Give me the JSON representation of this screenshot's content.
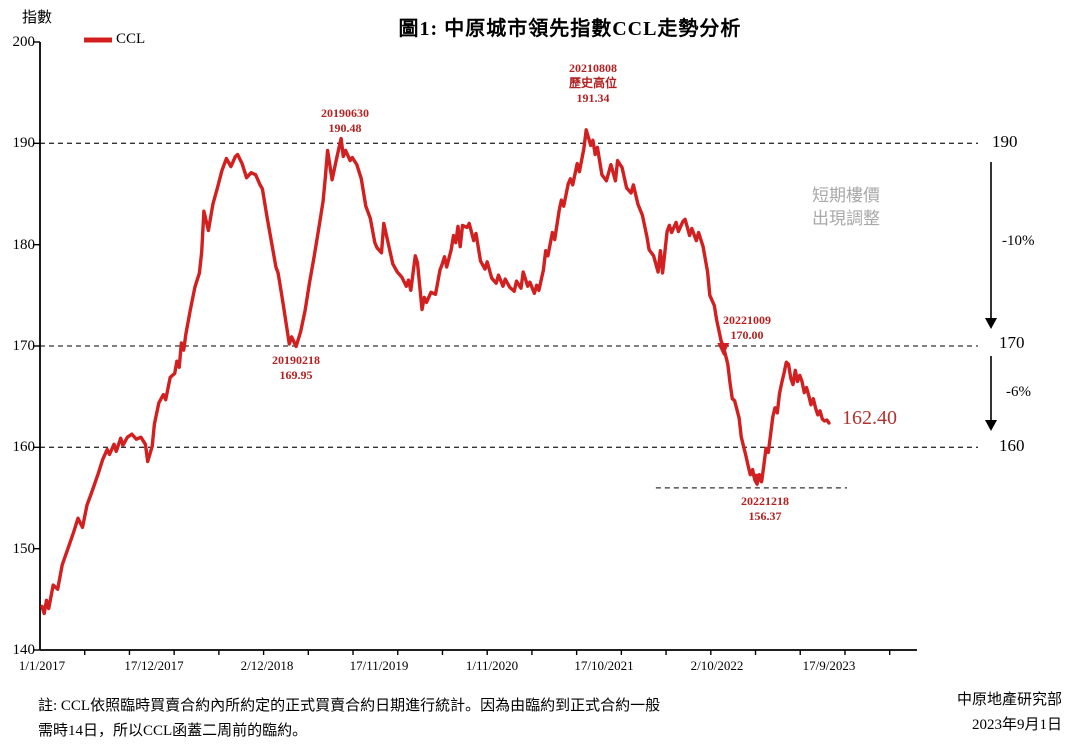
{
  "title": "圖1: 中原城市領先指數CCL走勢分析",
  "legend": {
    "label": "CCL"
  },
  "y_axis": {
    "label": "指數",
    "ticks": [
      "200",
      "190",
      "180",
      "170",
      "160",
      "150",
      "140"
    ]
  },
  "x_axis": {
    "ticks": [
      "1/1/2017",
      "17/12/2017",
      "2/12/2018",
      "17/11/2019",
      "1/11/2020",
      "17/10/2021",
      "2/10/2022",
      "17/9/2023"
    ]
  },
  "annotations": {
    "peak2019": [
      "20190630",
      "190.48"
    ],
    "high2021": [
      "20210808",
      "歷史高位",
      "191.34"
    ],
    "trough2019": [
      "20190218",
      "169.95"
    ],
    "cross2022": [
      "20221009",
      "170.00"
    ],
    "bottom2022": [
      "20221218",
      "156.37"
    ]
  },
  "right_panel": {
    "r190": "190",
    "r170": "170",
    "r160": "160",
    "drop10": "-10%",
    "drop6": "-6%",
    "note_line1": "短期樓價",
    "note_line2": "出現調整",
    "latest": "162.40"
  },
  "footnote": {
    "line1": "註: CCL依照臨時買賣合約內所約定的正式買賣合約日期進行統計。因為由臨約到正式合約一般",
    "line2": "需時14日，所以CCL函蓋二周前的臨約。"
  },
  "source": {
    "org": "中原地產研究部",
    "date": "2023年9月1日"
  },
  "colors": {
    "line": "#D21F1F",
    "annotation_red": "#B22222",
    "latest_red": "#B03330",
    "gray_note": "#A8A8A8",
    "axis": "#000000",
    "guide_dash": "#333333"
  },
  "chart_data": {
    "type": "line",
    "title": "圖1: 中原城市領先指數CCL走勢分析",
    "ylabel": "指數",
    "ylim": [
      140,
      200
    ],
    "x_encoding": "weeks since 1/1/2017 (weekly CCL index)",
    "x_tick_labels": [
      "1/1/2017",
      "17/12/2017",
      "2/12/2018",
      "17/11/2019",
      "1/11/2020",
      "17/10/2021",
      "2/10/2022",
      "17/9/2023"
    ],
    "x_tick_weeks": [
      0,
      50,
      100,
      150,
      200,
      250,
      300,
      350
    ],
    "guide_lines": [
      190,
      170,
      160
    ],
    "trough_guide": {
      "value": 156.0,
      "from_week": 273,
      "to_week": 358
    },
    "markers": [
      [
        303,
        169.6
      ],
      [
        318,
        156.7
      ]
    ],
    "annotated_points": [
      {
        "date": "20190630",
        "value": 190.48
      },
      {
        "date": "20210808",
        "value": 191.34,
        "note": "歷史高位"
      },
      {
        "date": "20190218",
        "value": 169.95
      },
      {
        "date": "20221009",
        "value": 170.0
      },
      {
        "date": "20221218",
        "value": 156.37
      },
      {
        "date": "latest",
        "value": 162.4
      }
    ],
    "series": [
      {
        "name": "CCL",
        "points": [
          [
            0,
            144.3
          ],
          [
            1,
            143.6
          ],
          [
            2,
            144.9
          ],
          [
            3,
            144.1
          ],
          [
            5,
            146.4
          ],
          [
            7,
            146.0
          ],
          [
            9,
            148.4
          ],
          [
            12,
            150.3
          ],
          [
            14,
            151.6
          ],
          [
            16,
            153.0
          ],
          [
            18,
            152.1
          ],
          [
            20,
            154.3
          ],
          [
            22,
            155.5
          ],
          [
            25,
            157.4
          ],
          [
            27,
            158.8
          ],
          [
            29,
            159.8
          ],
          [
            30,
            159.3
          ],
          [
            32,
            160.3
          ],
          [
            33,
            159.6
          ],
          [
            35,
            160.9
          ],
          [
            36,
            160.2
          ],
          [
            38,
            161.0
          ],
          [
            40,
            161.3
          ],
          [
            42,
            160.8
          ],
          [
            44,
            161.0
          ],
          [
            46,
            160.3
          ],
          [
            47,
            158.6
          ],
          [
            49,
            160.1
          ],
          [
            50,
            162.3
          ],
          [
            52,
            164.4
          ],
          [
            54,
            165.2
          ],
          [
            55,
            164.7
          ],
          [
            57,
            166.9
          ],
          [
            59,
            167.3
          ],
          [
            60,
            168.5
          ],
          [
            61,
            167.9
          ],
          [
            62,
            170.3
          ],
          [
            63,
            169.6
          ],
          [
            64,
            171.2
          ],
          [
            66,
            173.6
          ],
          [
            68,
            175.8
          ],
          [
            70,
            177.2
          ],
          [
            71,
            179.3
          ],
          [
            72,
            183.3
          ],
          [
            74,
            181.4
          ],
          [
            76,
            184.0
          ],
          [
            78,
            185.6
          ],
          [
            80,
            187.3
          ],
          [
            82,
            188.5
          ],
          [
            84,
            187.7
          ],
          [
            86,
            188.7
          ],
          [
            87,
            188.9
          ],
          [
            89,
            188.0
          ],
          [
            91,
            186.6
          ],
          [
            93,
            187.1
          ],
          [
            95,
            186.9
          ],
          [
            97,
            185.9
          ],
          [
            98,
            185.5
          ],
          [
            100,
            182.8
          ],
          [
            102,
            180.3
          ],
          [
            104,
            177.8
          ],
          [
            105,
            177.2
          ],
          [
            107,
            174.5
          ],
          [
            109,
            171.6
          ],
          [
            110,
            170.2
          ],
          [
            111,
            170.9
          ],
          [
            113,
            169.95
          ],
          [
            115,
            171.4
          ],
          [
            117,
            173.5
          ],
          [
            119,
            176.3
          ],
          [
            121,
            178.8
          ],
          [
            123,
            181.5
          ],
          [
            125,
            184.3
          ],
          [
            126,
            186.6
          ],
          [
            127,
            189.3
          ],
          [
            129,
            186.4
          ],
          [
            131,
            188.5
          ],
          [
            133,
            190.48
          ],
          [
            134,
            188.7
          ],
          [
            135,
            189.3
          ],
          [
            137,
            188.3
          ],
          [
            138,
            188.6
          ],
          [
            140,
            187.9
          ],
          [
            142,
            186.5
          ],
          [
            144,
            183.8
          ],
          [
            146,
            182.6
          ],
          [
            148,
            180.2
          ],
          [
            149,
            179.7
          ],
          [
            151,
            179.2
          ],
          [
            152,
            182.1
          ],
          [
            154,
            180.1
          ],
          [
            156,
            178.1
          ],
          [
            158,
            177.3
          ],
          [
            160,
            176.8
          ],
          [
            162,
            175.9
          ],
          [
            163,
            176.5
          ],
          [
            164,
            175.5
          ],
          [
            166,
            178.9
          ],
          [
            167,
            178.2
          ],
          [
            169,
            173.6
          ],
          [
            170,
            174.8
          ],
          [
            171,
            174.3
          ],
          [
            173,
            175.3
          ],
          [
            175,
            175.1
          ],
          [
            177,
            177.5
          ],
          [
            178,
            178.1
          ],
          [
            179,
            178.8
          ],
          [
            180,
            177.8
          ],
          [
            182,
            179.5
          ],
          [
            183,
            180.9
          ],
          [
            184,
            180.2
          ],
          [
            185,
            181.8
          ],
          [
            186,
            179.8
          ],
          [
            187,
            181.9
          ],
          [
            189,
            181.7
          ],
          [
            190,
            182.1
          ],
          [
            192,
            180.4
          ],
          [
            193,
            181.1
          ],
          [
            195,
            178.4
          ],
          [
            197,
            177.6
          ],
          [
            198,
            178.3
          ],
          [
            200,
            176.7
          ],
          [
            202,
            176.2
          ],
          [
            203,
            177.0
          ],
          [
            205,
            175.9
          ],
          [
            206,
            176.6
          ],
          [
            208,
            175.8
          ],
          [
            210,
            175.4
          ],
          [
            211,
            176.4
          ],
          [
            213,
            175.7
          ],
          [
            214,
            177.3
          ],
          [
            216,
            175.9
          ],
          [
            217,
            176.3
          ],
          [
            219,
            175.2
          ],
          [
            220,
            176.0
          ],
          [
            221,
            175.5
          ],
          [
            223,
            177.5
          ],
          [
            224,
            179.4
          ],
          [
            225,
            178.9
          ],
          [
            227,
            181.2
          ],
          [
            228,
            180.5
          ],
          [
            230,
            183.4
          ],
          [
            231,
            184.4
          ],
          [
            232,
            183.8
          ],
          [
            234,
            186.0
          ],
          [
            235,
            186.5
          ],
          [
            236,
            185.9
          ],
          [
            238,
            188.0
          ],
          [
            239,
            187.2
          ],
          [
            241,
            189.5
          ],
          [
            242,
            191.34
          ],
          [
            244,
            189.8
          ],
          [
            245,
            190.3
          ],
          [
            246,
            188.9
          ],
          [
            247,
            189.6
          ],
          [
            249,
            186.9
          ],
          [
            251,
            186.3
          ],
          [
            253,
            187.9
          ],
          [
            255,
            186.3
          ],
          [
            256,
            188.3
          ],
          [
            258,
            187.6
          ],
          [
            260,
            185.6
          ],
          [
            262,
            185.1
          ],
          [
            263,
            185.9
          ],
          [
            265,
            184.0
          ],
          [
            267,
            182.9
          ],
          [
            269,
            180.8
          ],
          [
            270,
            179.5
          ],
          [
            272,
            178.9
          ],
          [
            274,
            177.3
          ],
          [
            275,
            179.4
          ],
          [
            276,
            177.2
          ],
          [
            278,
            181.3
          ],
          [
            279,
            181.9
          ],
          [
            280,
            181.2
          ],
          [
            282,
            182.2
          ],
          [
            283,
            181.3
          ],
          [
            285,
            182.3
          ],
          [
            286,
            182.5
          ],
          [
            288,
            180.9
          ],
          [
            289,
            181.6
          ],
          [
            291,
            180.4
          ],
          [
            292,
            181.2
          ],
          [
            294,
            179.8
          ],
          [
            296,
            177.3
          ],
          [
            297,
            175.0
          ],
          [
            299,
            174.0
          ],
          [
            300,
            172.6
          ],
          [
            302,
            170.5
          ],
          [
            303,
            170.0
          ],
          [
            305,
            168.2
          ],
          [
            306,
            166.3
          ],
          [
            307,
            164.8
          ],
          [
            308,
            164.6
          ],
          [
            310,
            162.9
          ],
          [
            311,
            161.0
          ],
          [
            313,
            159.2
          ],
          [
            314,
            158.2
          ],
          [
            315,
            157.3
          ],
          [
            316,
            157.8
          ],
          [
            317,
            156.8
          ],
          [
            318,
            156.37
          ],
          [
            319,
            157.3
          ],
          [
            320,
            156.6
          ],
          [
            321,
            158.2
          ],
          [
            322,
            159.9
          ],
          [
            323,
            159.5
          ],
          [
            324,
            161.2
          ],
          [
            325,
            163.0
          ],
          [
            326,
            163.9
          ],
          [
            327,
            163.4
          ],
          [
            328,
            165.3
          ],
          [
            329,
            166.4
          ],
          [
            330,
            167.3
          ],
          [
            331,
            168.4
          ],
          [
            332,
            168.2
          ],
          [
            333,
            166.8
          ],
          [
            334,
            166.2
          ],
          [
            335,
            167.6
          ],
          [
            336,
            166.5
          ],
          [
            337,
            167.1
          ],
          [
            338,
            166.5
          ],
          [
            339,
            165.4
          ],
          [
            340,
            165.9
          ],
          [
            341,
            165.1
          ],
          [
            342,
            164.2
          ],
          [
            343,
            164.8
          ],
          [
            344,
            163.9
          ],
          [
            345,
            163.2
          ],
          [
            346,
            163.6
          ],
          [
            347,
            162.8
          ],
          [
            348,
            162.6
          ],
          [
            349,
            162.7
          ],
          [
            350,
            162.4
          ]
        ]
      }
    ]
  }
}
